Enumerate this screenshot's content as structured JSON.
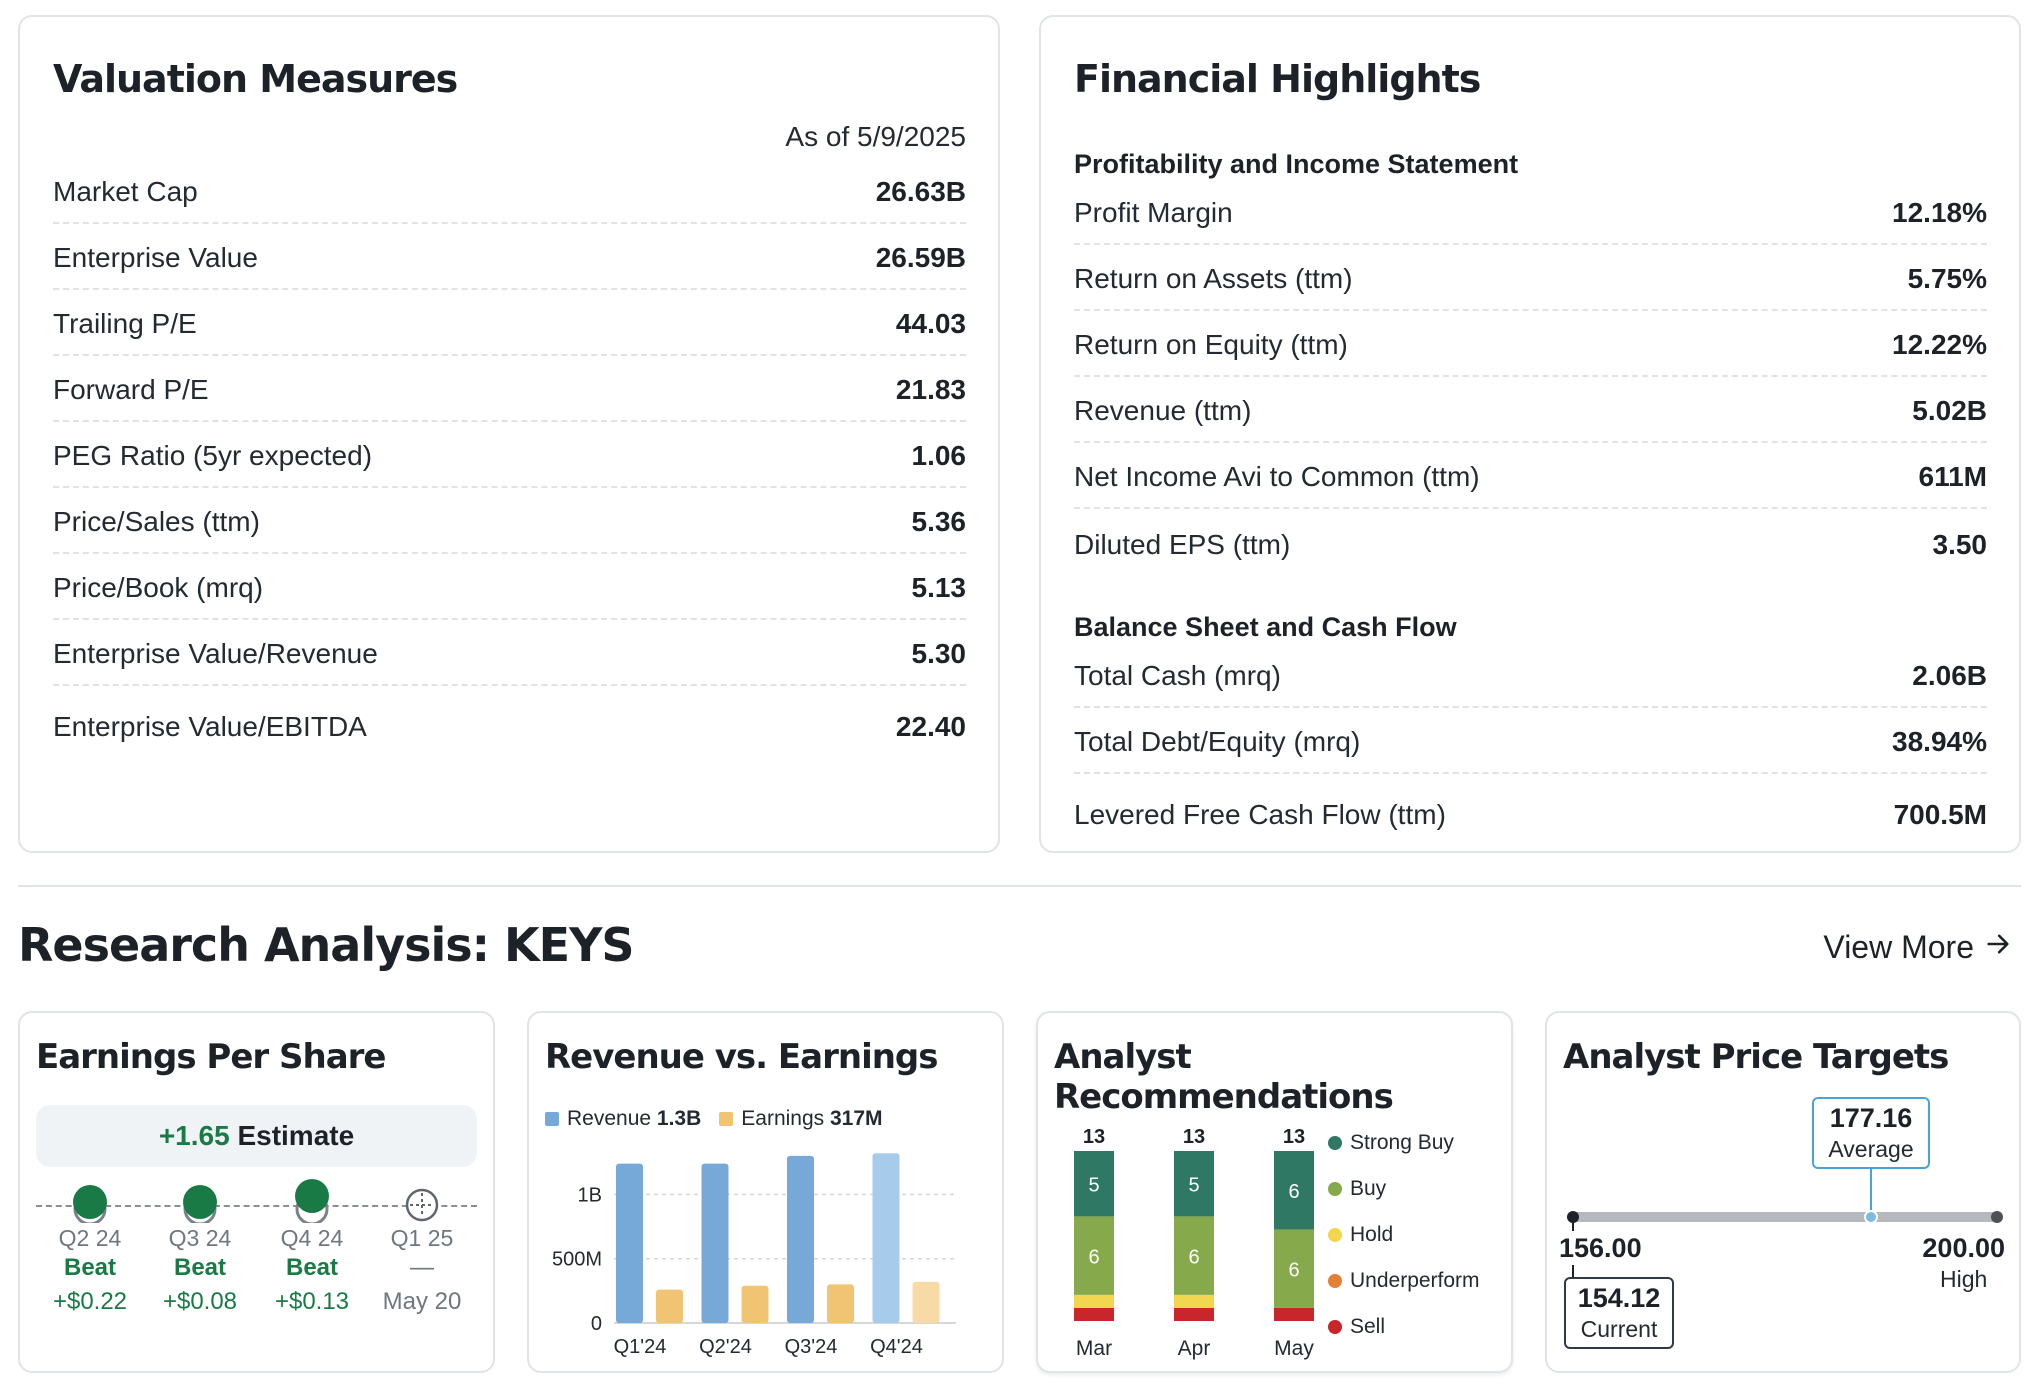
{
  "valuation": {
    "title": "Valuation Measures",
    "as_of": "As of 5/9/2025",
    "rows": [
      {
        "label": "Market Cap",
        "value": "26.63B"
      },
      {
        "label": "Enterprise Value",
        "value": "26.59B"
      },
      {
        "label": "Trailing P/E",
        "value": "44.03"
      },
      {
        "label": "Forward P/E",
        "value": "21.83"
      },
      {
        "label": "PEG Ratio (5yr expected)",
        "value": "1.06"
      },
      {
        "label": "Price/Sales (ttm)",
        "value": "5.36"
      },
      {
        "label": "Price/Book (mrq)",
        "value": "5.13"
      },
      {
        "label": "Enterprise Value/Revenue",
        "value": "5.30"
      },
      {
        "label": "Enterprise Value/EBITDA",
        "value": "22.40"
      }
    ]
  },
  "financial": {
    "title": "Financial Highlights",
    "profit_heading": "Profitability and Income Statement",
    "profit_rows": [
      {
        "label": "Profit Margin",
        "value": "12.18%"
      },
      {
        "label": "Return on Assets (ttm)",
        "value": "5.75%"
      },
      {
        "label": "Return on Equity (ttm)",
        "value": "12.22%"
      },
      {
        "label": "Revenue (ttm)",
        "value": "5.02B"
      },
      {
        "label": "Net Income Avi to Common (ttm)",
        "value": "611M"
      },
      {
        "label": "Diluted EPS (ttm)",
        "value": "3.50"
      }
    ],
    "balance_heading": "Balance Sheet and Cash Flow",
    "balance_rows": [
      {
        "label": "Total Cash (mrq)",
        "value": "2.06B"
      },
      {
        "label": "Total Debt/Equity (mrq)",
        "value": "38.94%"
      },
      {
        "label": "Levered Free Cash Flow (ttm)",
        "value": "700.5M"
      }
    ]
  },
  "research": {
    "title": "Research Analysis: KEYS",
    "view_more": "View More",
    "arrow_icon": "arrow-right-icon"
  },
  "eps": {
    "title": "Earnings Per Share",
    "estimate_value": "+1.65",
    "estimate_label": "Estimate",
    "quarters": [
      {
        "quarter": "Q2 24",
        "status": "Beat",
        "diff": "+$0.22",
        "state": "beat"
      },
      {
        "quarter": "Q3 24",
        "status": "Beat",
        "diff": "+$0.08",
        "state": "beat"
      },
      {
        "quarter": "Q4 24",
        "status": "Beat",
        "diff": "+$0.13",
        "state": "beat"
      },
      {
        "quarter": "Q1 25",
        "status": "—",
        "diff": "May 20",
        "state": "upcoming"
      }
    ],
    "colors": {
      "beat": "#1a7a45",
      "neutral": "#6e7780"
    }
  },
  "revenue": {
    "title": "Revenue vs. Earnings",
    "legend": {
      "revenue_label": "Revenue",
      "revenue_value": "1.3B",
      "earnings_label": "Earnings",
      "earnings_value": "317M"
    },
    "colors": {
      "revenue": "#77a9d8",
      "revenue_light": "#a7cbeb",
      "earnings": "#f0c473",
      "earnings_light": "#f6dba6"
    }
  },
  "recommendations": {
    "title": "Analyst Recommendations",
    "legend": [
      "Strong Buy",
      "Buy",
      "Hold",
      "Underperform",
      "Sell"
    ],
    "colors": {
      "strong_buy": "#2e7864",
      "buy": "#86a94c",
      "hold": "#f2d650",
      "underperform": "#e38037",
      "sell": "#c8262b"
    }
  },
  "price_targets": {
    "title": "Analyst Price Targets",
    "average": "177.16",
    "average_label": "Average",
    "low": "156.00",
    "high": "200.00",
    "high_label": "High",
    "current": "154.12",
    "current_label": "Current",
    "range_fraction": {
      "average": 0.48,
      "current": 0.0
    }
  },
  "chart_data": [
    {
      "type": "bar",
      "title": "Revenue vs. Earnings",
      "categories": [
        "Q1'24",
        "Q2'24",
        "Q3'24",
        "Q4'24"
      ],
      "series": [
        {
          "name": "Revenue",
          "values": [
            1.24,
            1.24,
            1.3,
            1.32
          ]
        },
        {
          "name": "Earnings",
          "values": [
            0.26,
            0.29,
            0.3,
            0.32
          ]
        }
      ],
      "y_ticks": [
        "0",
        "500M",
        "1B"
      ],
      "ylim": [
        0,
        1.4
      ],
      "grid": true
    },
    {
      "type": "bar",
      "title": "Analyst Recommendations",
      "stacked": true,
      "categories": [
        "Mar",
        "Apr",
        "May"
      ],
      "totals": [
        "13",
        "13",
        "13"
      ],
      "series": [
        {
          "name": "Strong Buy",
          "values": [
            5,
            5,
            6
          ]
        },
        {
          "name": "Buy",
          "values": [
            6,
            6,
            6
          ]
        },
        {
          "name": "Hold",
          "values": [
            1,
            1,
            0
          ]
        },
        {
          "name": "Underperform",
          "values": [
            0,
            0,
            0
          ]
        },
        {
          "name": "Sell",
          "values": [
            1,
            1,
            1
          ]
        }
      ]
    }
  ]
}
